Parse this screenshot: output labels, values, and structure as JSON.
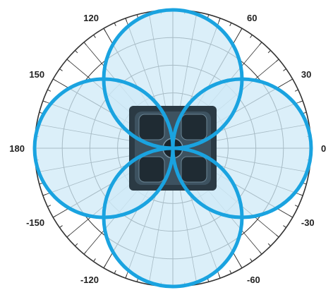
{
  "chart_data": {
    "type": "polar",
    "pattern": "four-lobe (cloverleaf) radiation pattern",
    "angle_ticks": [
      {
        "angle": 0,
        "label": "0"
      },
      {
        "angle": 30,
        "label": "30"
      },
      {
        "angle": 60,
        "label": "60"
      },
      {
        "angle": 120,
        "label": "120"
      },
      {
        "angle": 150,
        "label": "150"
      },
      {
        "angle": 180,
        "label": "180"
      },
      {
        "angle": -150,
        "label": "-150"
      },
      {
        "angle": -120,
        "label": "-120"
      },
      {
        "angle": -60,
        "label": "-60"
      },
      {
        "angle": -30,
        "label": "-30"
      }
    ],
    "lobe_peak_angles": [
      0,
      90,
      180,
      -90
    ],
    "lobe_peak_magnitude": 1.0,
    "radial_grid_rings": 5,
    "angular_grid_step_deg": 10,
    "grid": true,
    "center_image": "antenna-device",
    "colors": {
      "lobe_stroke": "#1aa3e0",
      "lobe_fill": "#cfe9f7",
      "grid": "#333333",
      "device": "#2b3a44"
    }
  }
}
